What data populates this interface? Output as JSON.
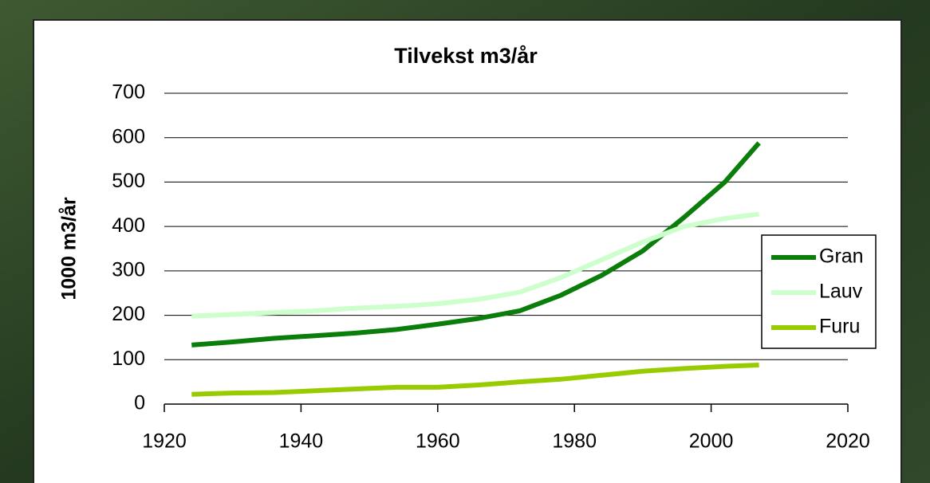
{
  "chart_data": {
    "type": "line",
    "title": "Tilvekst m3/år",
    "y_label": "1000 m3/år",
    "x": [
      1924,
      1930,
      1936,
      1942,
      1948,
      1954,
      1960,
      1966,
      1972,
      1978,
      1984,
      1990,
      1996,
      2002,
      2007
    ],
    "series": [
      {
        "name": "Gran",
        "color": "#0a7d0a",
        "values": [
          133,
          140,
          148,
          154,
          160,
          168,
          180,
          193,
          210,
          245,
          290,
          345,
          420,
          500,
          588
        ]
      },
      {
        "name": "Lauv",
        "color": "#ccffcc",
        "values": [
          198,
          202,
          206,
          210,
          216,
          220,
          226,
          236,
          252,
          285,
          325,
          365,
          400,
          418,
          428
        ]
      },
      {
        "name": "Furu",
        "color": "#99cc00",
        "values": [
          22,
          25,
          26,
          30,
          34,
          38,
          38,
          43,
          50,
          56,
          65,
          74,
          80,
          85,
          88
        ]
      }
    ],
    "xlim": [
      1920,
      2020
    ],
    "xticks": [
      1920,
      1940,
      1960,
      1980,
      2000,
      2020
    ],
    "ylim": [
      0,
      700
    ],
    "yticks": [
      0,
      100,
      200,
      300,
      400,
      500,
      600,
      700
    ],
    "grid": true,
    "legend": "right"
  }
}
